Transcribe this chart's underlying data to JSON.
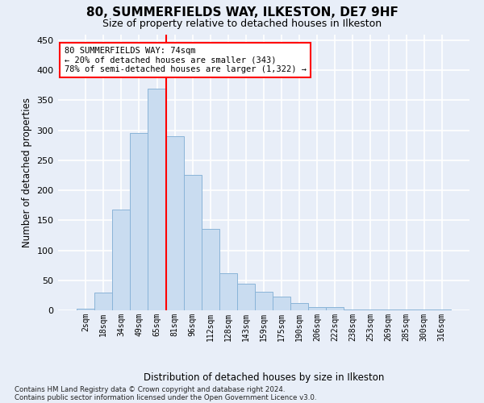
{
  "title": "80, SUMMERFIELDS WAY, ILKESTON, DE7 9HF",
  "subtitle": "Size of property relative to detached houses in Ilkeston",
  "xlabel": "Distribution of detached houses by size in Ilkeston",
  "ylabel": "Number of detached properties",
  "categories": [
    "2sqm",
    "18sqm",
    "34sqm",
    "49sqm",
    "65sqm",
    "81sqm",
    "96sqm",
    "112sqm",
    "128sqm",
    "143sqm",
    "159sqm",
    "175sqm",
    "190sqm",
    "206sqm",
    "222sqm",
    "238sqm",
    "253sqm",
    "269sqm",
    "285sqm",
    "300sqm",
    "316sqm"
  ],
  "bar_values": [
    3,
    30,
    168,
    295,
    370,
    290,
    226,
    135,
    62,
    44,
    31,
    23,
    12,
    6,
    5,
    2,
    2,
    1,
    1,
    1,
    1
  ],
  "bar_color": "#c9dcf0",
  "bar_edge_color": "#8ab4d8",
  "vline_pos": 4.5,
  "annotation_text": "80 SUMMERFIELDS WAY: 74sqm\n← 20% of detached houses are smaller (343)\n78% of semi-detached houses are larger (1,322) →",
  "footnote1": "Contains HM Land Registry data © Crown copyright and database right 2024.",
  "footnote2": "Contains public sector information licensed under the Open Government Licence v3.0.",
  "background_color": "#e8eef8",
  "plot_background": "#e8eef8",
  "grid_color": "#ffffff",
  "ylim": [
    0,
    460
  ],
  "yticks": [
    0,
    50,
    100,
    150,
    200,
    250,
    300,
    350,
    400,
    450
  ]
}
